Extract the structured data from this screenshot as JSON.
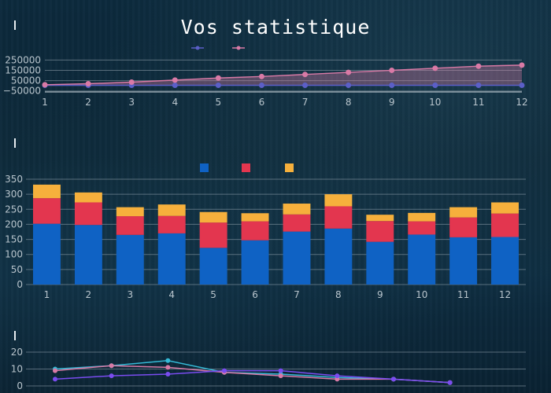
{
  "page_title": "Vos statistique",
  "colors": {
    "line_blue": "#5b5fc7",
    "line_pink": "#d97aa6",
    "bar_blue": "#0f62c4",
    "bar_red": "#e3364f",
    "bar_yellow": "#f6b03c",
    "line_cyan": "#35b9d6",
    "line_violet": "#7a4cf0",
    "grid": "#8a9aa6"
  },
  "chart_data": [
    {
      "type": "line",
      "x": [
        1,
        2,
        3,
        4,
        5,
        6,
        7,
        8,
        9,
        10,
        11,
        12
      ],
      "y_ticks": [
        "250000",
        "150000",
        "50000",
        "−50000"
      ],
      "x_ticks": [
        "1",
        "2",
        "3",
        "4",
        "5",
        "6",
        "7",
        "8",
        "9",
        "10",
        "11",
        "12"
      ],
      "ylim": [
        -60000,
        260000
      ],
      "grid": true,
      "legend_position": "top-center",
      "series": [
        {
          "color_key": "line_blue",
          "values": [
            5000,
            5000,
            5000,
            5000,
            5000,
            5000,
            5000,
            5000,
            5000,
            5000,
            5000,
            5000
          ]
        },
        {
          "color_key": "line_pink",
          "values": [
            10000,
            20000,
            35000,
            55000,
            75000,
            90000,
            110000,
            130000,
            150000,
            170000,
            190000,
            200000
          ]
        }
      ]
    },
    {
      "type": "bar",
      "stacked": true,
      "categories": [
        "1",
        "2",
        "3",
        "4",
        "5",
        "6",
        "7",
        "8",
        "9",
        "10",
        "11",
        "12"
      ],
      "y_ticks": [
        "350",
        "300",
        "250",
        "200",
        "150",
        "100",
        "50",
        "0"
      ],
      "ylim": [
        0,
        350
      ],
      "grid": true,
      "legend_position": "top-center",
      "series": [
        {
          "color_key": "bar_blue",
          "values": [
            202,
            198,
            165,
            170,
            122,
            147,
            176,
            186,
            142,
            166,
            157,
            158
          ]
        },
        {
          "color_key": "bar_red",
          "values": [
            85,
            75,
            62,
            58,
            84,
            63,
            57,
            74,
            69,
            44,
            66,
            78
          ]
        },
        {
          "color_key": "bar_yellow",
          "values": [
            45,
            33,
            30,
            38,
            35,
            27,
            36,
            40,
            21,
            28,
            34,
            37
          ]
        }
      ]
    },
    {
      "type": "line",
      "x": [
        1,
        2,
        3,
        4,
        5,
        6,
        7,
        8
      ],
      "y_ticks": [
        "20",
        "10",
        "0"
      ],
      "ylim": [
        0,
        20
      ],
      "grid": true,
      "series": [
        {
          "color_key": "line_cyan",
          "values": [
            10,
            12,
            15,
            8,
            7,
            5,
            4,
            2
          ]
        },
        {
          "color_key": "line_pink",
          "values": [
            9,
            12,
            11,
            8,
            6,
            4,
            4,
            2
          ]
        },
        {
          "color_key": "line_violet",
          "values": [
            4,
            6,
            7,
            9,
            9,
            6,
            4,
            2
          ]
        }
      ]
    }
  ]
}
